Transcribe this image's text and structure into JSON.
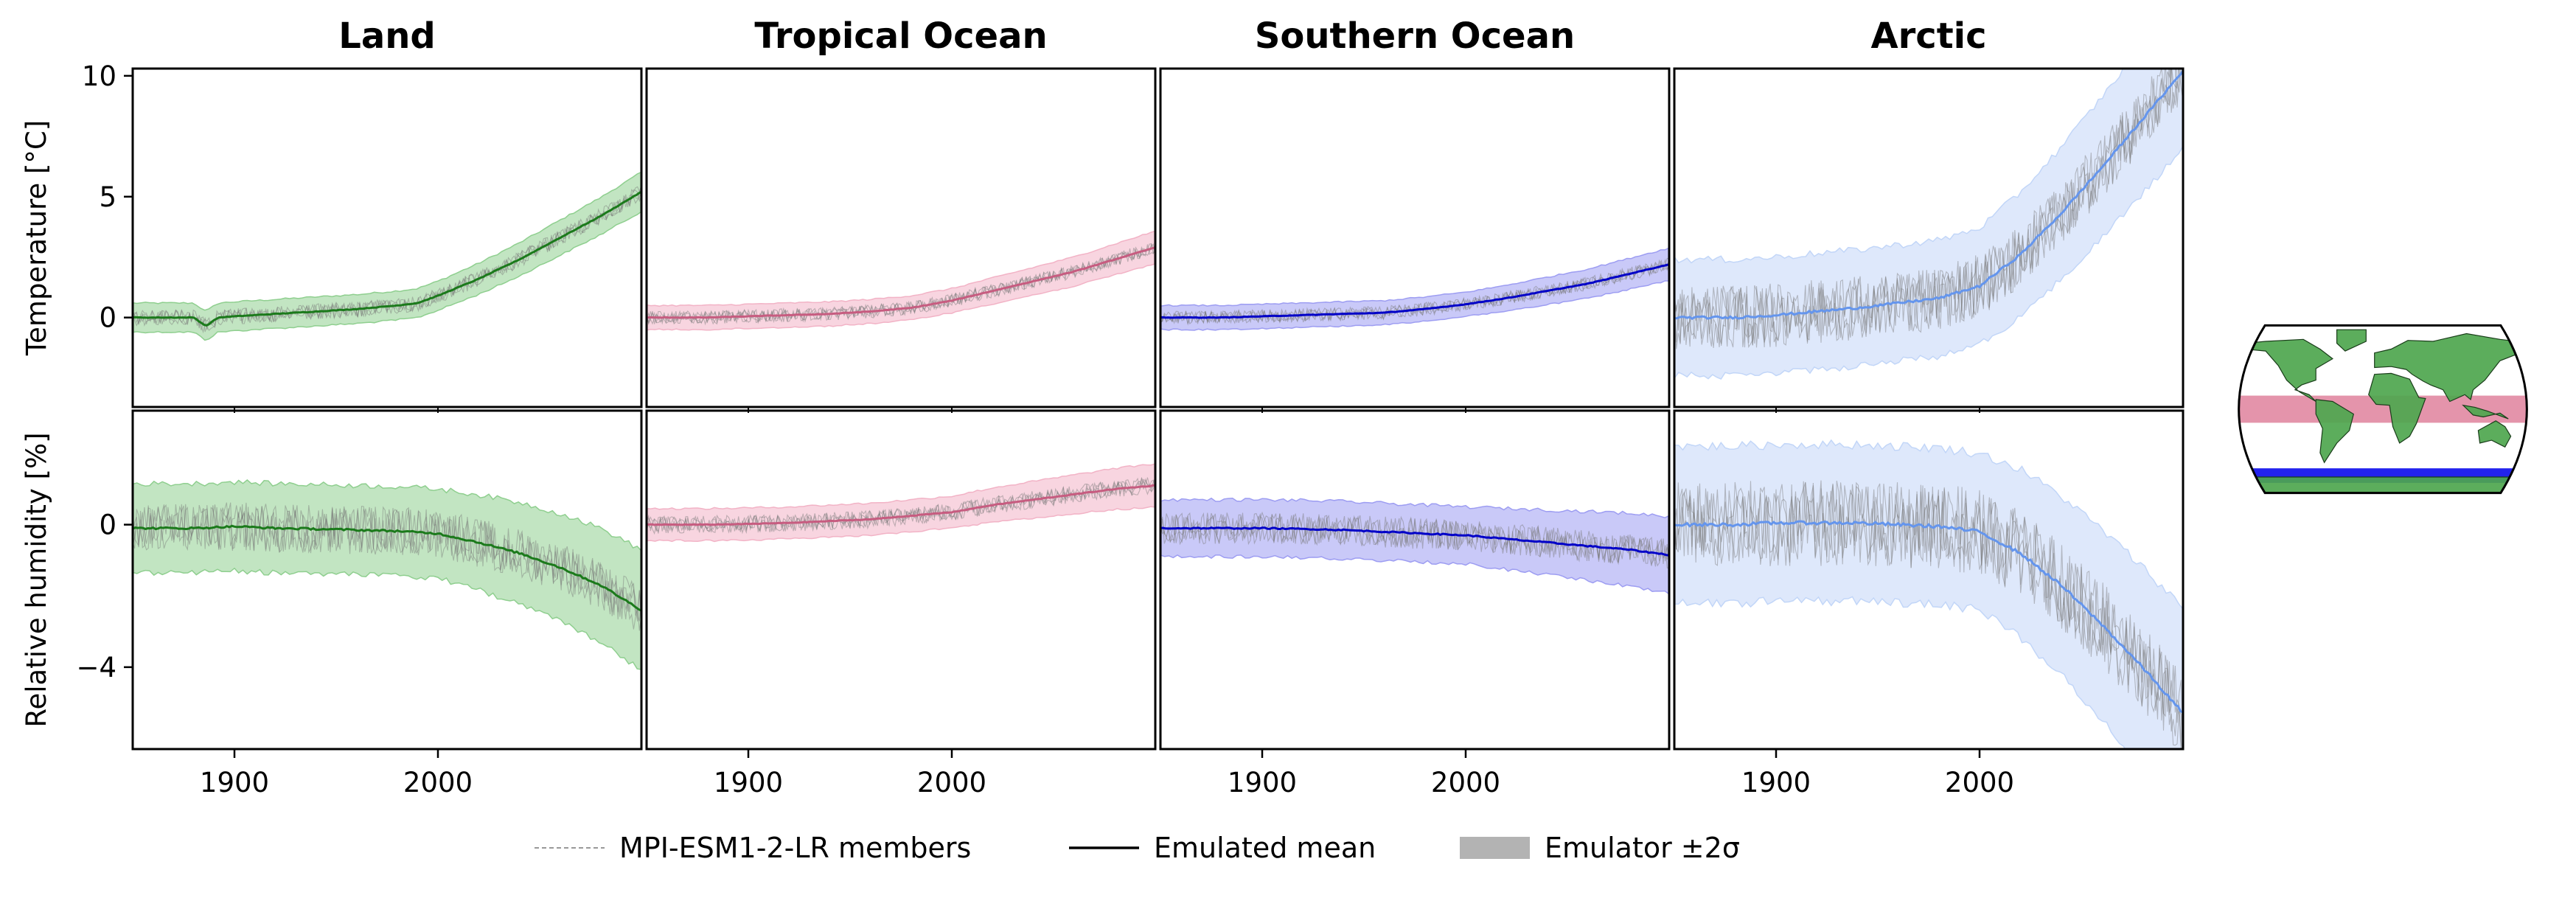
{
  "chart_data": {
    "type": "line",
    "regions": [
      {
        "name": "Land",
        "color": "#2e7d32",
        "band_color": "#8fcf8f",
        "mean_color": "#1b7a1b"
      },
      {
        "name": "Tropical Ocean",
        "color": "#d97896",
        "band_color": "#f2b3c6",
        "mean_color": "#c75c80"
      },
      {
        "name": "Southern Ocean",
        "color": "#3333dd",
        "band_color": "#9d9df2",
        "mean_color": "#0000c8"
      },
      {
        "name": "Arctic",
        "color": "#6495ed",
        "band_color": "#c2d6f8",
        "mean_color": "#6495ed"
      }
    ],
    "x_range": [
      1850,
      2100
    ],
    "x_ticks": [
      1900,
      2000
    ],
    "x_tick_labels": [
      "1900",
      "2000"
    ],
    "rows": [
      {
        "variable": "temperature",
        "ylabel": "Temperature [°C]",
        "ylim": [
          -3.7,
          10.3
        ],
        "yticks": [
          0,
          5,
          10
        ],
        "ytick_labels": [
          "0",
          "5",
          "10"
        ],
        "series": [
          {
            "region": "Land",
            "mean": [
              [
                1850,
                0
              ],
              [
                1880,
                0
              ],
              [
                1886,
                -0.35
              ],
              [
                1892,
                0
              ],
              [
                1900,
                0.05
              ],
              [
                1920,
                0.15
              ],
              [
                1940,
                0.25
              ],
              [
                1960,
                0.35
              ],
              [
                1980,
                0.5
              ],
              [
                1990,
                0.6
              ],
              [
                2000,
                0.9
              ],
              [
                2020,
                1.6
              ],
              [
                2040,
                2.4
              ],
              [
                2060,
                3.3
              ],
              [
                2080,
                4.2
              ],
              [
                2100,
                5.2
              ]
            ],
            "band": 0.6
          },
          {
            "region": "Tropical Ocean",
            "mean": [
              [
                1850,
                0
              ],
              [
                1880,
                0
              ],
              [
                1900,
                0.05
              ],
              [
                1920,
                0.1
              ],
              [
                1940,
                0.15
              ],
              [
                1960,
                0.25
              ],
              [
                1980,
                0.4
              ],
              [
                2000,
                0.7
              ],
              [
                2020,
                1.1
              ],
              [
                2040,
                1.5
              ],
              [
                2060,
                1.9
              ],
              [
                2080,
                2.4
              ],
              [
                2100,
                2.9
              ]
            ],
            "band": 0.5
          },
          {
            "region": "Southern Ocean",
            "mean": [
              [
                1850,
                0
              ],
              [
                1880,
                0
              ],
              [
                1900,
                0.05
              ],
              [
                1920,
                0.1
              ],
              [
                1940,
                0.15
              ],
              [
                1960,
                0.2
              ],
              [
                1980,
                0.35
              ],
              [
                2000,
                0.55
              ],
              [
                2020,
                0.8
              ],
              [
                2040,
                1.1
              ],
              [
                2060,
                1.4
              ],
              [
                2080,
                1.8
              ],
              [
                2100,
                2.2
              ]
            ],
            "band": 0.5
          },
          {
            "region": "Arctic",
            "mean": [
              [
                1850,
                0
              ],
              [
                1880,
                0
              ],
              [
                1900,
                0.1
              ],
              [
                1920,
                0.25
              ],
              [
                1940,
                0.4
              ],
              [
                1960,
                0.6
              ],
              [
                1980,
                0.8
              ],
              [
                2000,
                1.3
              ],
              [
                2020,
                2.6
              ],
              [
                2040,
                4.3
              ],
              [
                2060,
                6.2
              ],
              [
                2080,
                8.2
              ],
              [
                2100,
                10.2
              ]
            ],
            "band": 2.4
          }
        ]
      },
      {
        "variable": "relative_humidity",
        "ylabel": "Relative humidity [%]",
        "ylim": [
          -6.3,
          3.2
        ],
        "yticks": [
          -4,
          0
        ],
        "ytick_labels": [
          "−4",
          "0"
        ],
        "series": [
          {
            "region": "Land",
            "mean": [
              [
                1850,
                -0.1
              ],
              [
                1880,
                -0.1
              ],
              [
                1900,
                -0.05
              ],
              [
                1920,
                -0.1
              ],
              [
                1940,
                -0.12
              ],
              [
                1960,
                -0.15
              ],
              [
                1980,
                -0.18
              ],
              [
                2000,
                -0.25
              ],
              [
                2020,
                -0.5
              ],
              [
                2040,
                -0.8
              ],
              [
                2060,
                -1.2
              ],
              [
                2080,
                -1.7
              ],
              [
                2100,
                -2.4
              ]
            ],
            "band": 1.25
          },
          {
            "region": "Tropical Ocean",
            "mean": [
              [
                1850,
                0
              ],
              [
                1880,
                0
              ],
              [
                1900,
                0.02
              ],
              [
                1920,
                0.05
              ],
              [
                1940,
                0.1
              ],
              [
                1960,
                0.15
              ],
              [
                1980,
                0.25
              ],
              [
                2000,
                0.35
              ],
              [
                2020,
                0.55
              ],
              [
                2040,
                0.7
              ],
              [
                2060,
                0.85
              ],
              [
                2080,
                1.0
              ],
              [
                2100,
                1.1
              ]
            ],
            "band": 0.45
          },
          {
            "region": "Southern Ocean",
            "mean": [
              [
                1850,
                -0.1
              ],
              [
                1880,
                -0.1
              ],
              [
                1900,
                -0.1
              ],
              [
                1920,
                -0.12
              ],
              [
                1940,
                -0.15
              ],
              [
                1960,
                -0.2
              ],
              [
                1980,
                -0.25
              ],
              [
                2000,
                -0.3
              ],
              [
                2020,
                -0.4
              ],
              [
                2040,
                -0.5
              ],
              [
                2060,
                -0.6
              ],
              [
                2080,
                -0.7
              ],
              [
                2100,
                -0.85
              ]
            ],
            "band": 0.8
          },
          {
            "region": "Arctic",
            "mean": [
              [
                1850,
                0
              ],
              [
                1880,
                0
              ],
              [
                1900,
                0.05
              ],
              [
                1920,
                0.05
              ],
              [
                1940,
                0.05
              ],
              [
                1960,
                0
              ],
              [
                1980,
                -0.05
              ],
              [
                2000,
                -0.2
              ],
              [
                2020,
                -0.8
              ],
              [
                2040,
                -1.7
              ],
              [
                2060,
                -2.8
              ],
              [
                2080,
                -4.0
              ],
              [
                2100,
                -5.3
              ]
            ],
            "band": 2.2
          }
        ]
      }
    ],
    "legend": {
      "placement": "bottom-center",
      "entries": [
        {
          "label": "MPI-ESM1-2-LR members",
          "style": "thin-dashed-gray"
        },
        {
          "label": "Emulated mean",
          "style": "solid-black"
        },
        {
          "label": "Emulator ±2σ",
          "style": "gray-patch"
        }
      ]
    },
    "map_inset": {
      "regions_highlighted": [
        "Tropical Ocean",
        "Southern Ocean"
      ],
      "land_color": "#4ea64e",
      "ocean_color": "#ffffff",
      "tropical_band_color": "#e494ab",
      "southern_band_color": "#2222ee"
    }
  }
}
